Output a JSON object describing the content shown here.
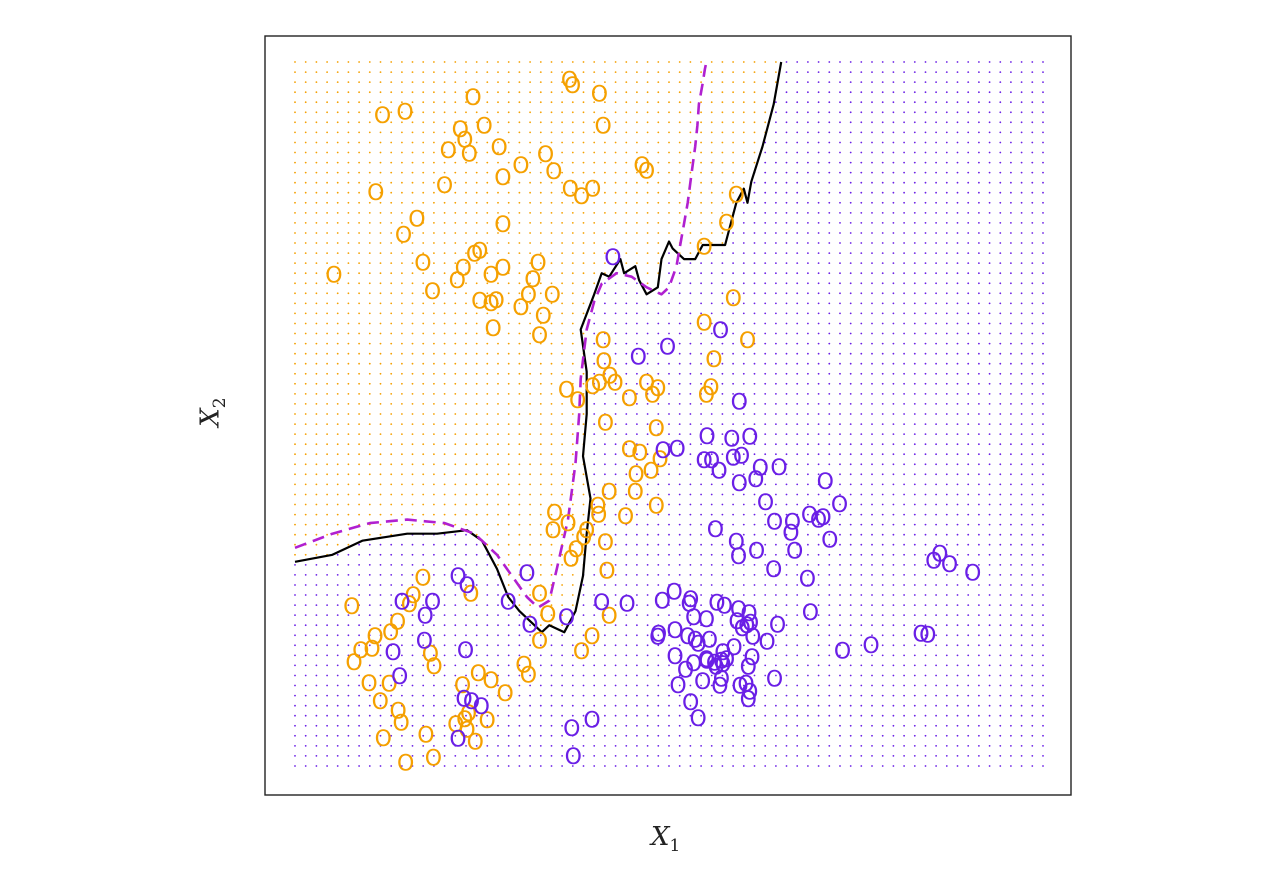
{
  "chart_data": {
    "type": "scatter",
    "title": "",
    "xlabel": "X",
    "xlabel_sub": "1",
    "ylabel": "X",
    "ylabel_sub": "2",
    "xlim": [
      0,
      1
    ],
    "ylim": [
      0,
      1
    ],
    "axes_ticks": "none",
    "grid": "background dot grid colored by predicted class",
    "marker": "O",
    "colors": {
      "orange": "#f5a000",
      "blue": "#6a1fe6",
      "bayes_boundary": "#b020d0",
      "fitted_boundary": "#000000"
    },
    "series": [
      {
        "color": "orange",
        "x": [
          0.052,
          0.273,
          0.302,
          0.398,
          0.383,
          0.278,
          0.346,
          0.335,
          0.253,
          0.238,
          0.221,
          0.227,
          0.233,
          0.205,
          0.147,
          0.117,
          0.2,
          0.163,
          0.108,
          0.145,
          0.217,
          0.262,
          0.278,
          0.278,
          0.247,
          0.24,
          0.269,
          0.262,
          0.344,
          0.332,
          0.302,
          0.327,
          0.412,
          0.413,
          0.407,
          0.363,
          0.378,
          0.398,
          0.447,
          0.478,
          0.483,
          0.488,
          0.476,
          0.461,
          0.447,
          0.415,
          0.456,
          0.483,
          0.455,
          0.442,
          0.42,
          0.406,
          0.39,
          0.365,
          0.347,
          0.376,
          0.415,
          0.417,
          0.405,
          0.386,
          0.369,
          0.327,
          0.338,
          0.42,
          0.397,
          0.383,
          0.327,
          0.312,
          0.306,
          0.281,
          0.262,
          0.245,
          0.257,
          0.241,
          0.23,
          0.227,
          0.232,
          0.181,
          0.153,
          0.137,
          0.171,
          0.158,
          0.128,
          0.107,
          0.103,
          0.079,
          0.076,
          0.088,
          0.099,
          0.114,
          0.126,
          0.138,
          0.186,
          0.224,
          0.142,
          0.118,
          0.148,
          0.215,
          0.185,
          0.175,
          0.235,
          0.345,
          0.421,
          0.428,
          0.47,
          0.485,
          0.55,
          0.556,
          0.56,
          0.605,
          0.547,
          0.586,
          0.547,
          0.577,
          0.59,
          0.47,
          0.464,
          0.412,
          0.407,
          0.371,
          0.367,
          0.368,
          0.325,
          0.312,
          0.318,
          0.265,
          0.247,
          0.225,
          0.184,
          0.171
        ],
        "y": [
          0.698,
          0.879,
          0.854,
          0.82,
          0.81,
          0.837,
          0.845,
          0.869,
          0.91,
          0.95,
          0.905,
          0.89,
          0.87,
          0.875,
          0.93,
          0.925,
          0.825,
          0.778,
          0.815,
          0.755,
          0.69,
          0.698,
          0.77,
          0.708,
          0.732,
          0.728,
          0.662,
          0.658,
          0.67,
          0.64,
          0.652,
          0.612,
          0.605,
          0.575,
          0.545,
          0.535,
          0.52,
          0.54,
          0.523,
          0.528,
          0.48,
          0.436,
          0.42,
          0.445,
          0.45,
          0.488,
          0.415,
          0.37,
          0.39,
          0.355,
          0.39,
          0.357,
          0.335,
          0.345,
          0.36,
          0.308,
          0.318,
          0.278,
          0.37,
          0.325,
          0.295,
          0.245,
          0.216,
          0.214,
          0.185,
          0.163,
          0.178,
          0.13,
          0.144,
          0.104,
          0.122,
          0.132,
          0.065,
          0.035,
          0.052,
          0.067,
          0.075,
          0.16,
          0.23,
          0.205,
          0.268,
          0.243,
          0.19,
          0.185,
          0.167,
          0.148,
          0.227,
          0.165,
          0.118,
          0.092,
          0.117,
          0.079,
          0.142,
          0.115,
          0.062,
          0.04,
          0.005,
          0.06,
          0.012,
          0.045,
          0.245,
          0.335,
          0.555,
          0.545,
          0.545,
          0.537,
          0.528,
          0.538,
          0.578,
          0.605,
          0.63,
          0.665,
          0.738,
          0.772,
          0.812,
          0.846,
          0.854,
          0.91,
          0.955,
          0.967,
          0.975,
          0.82,
          0.715,
          0.67,
          0.692,
          0.622,
          0.661,
          0.708,
          0.675,
          0.715
        ]
      },
      {
        "color": "blue",
        "x": [
          0.425,
          0.498,
          0.459,
          0.569,
          0.594,
          0.584,
          0.557,
          0.492,
          0.551,
          0.511,
          0.547,
          0.567,
          0.597,
          0.586,
          0.594,
          0.608,
          0.647,
          0.616,
          0.622,
          0.629,
          0.641,
          0.665,
          0.688,
          0.709,
          0.663,
          0.59,
          0.562,
          0.593,
          0.617,
          0.64,
          0.668,
          0.685,
          0.706,
          0.7,
          0.728,
          0.715,
          0.689,
          0.645,
          0.631,
          0.604,
          0.55,
          0.55,
          0.591,
          0.607,
          0.593,
          0.574,
          0.564,
          0.529,
          0.491,
          0.485,
          0.486,
          0.508,
          0.551,
          0.561,
          0.598,
          0.609,
          0.611,
          0.606,
          0.603,
          0.57,
          0.535,
          0.522,
          0.512,
          0.529,
          0.539,
          0.545,
          0.568,
          0.572,
          0.587,
          0.608,
          0.606,
          0.595,
          0.57,
          0.563,
          0.554,
          0.577,
          0.533,
          0.525,
          0.508,
          0.539,
          0.527,
          0.507,
          0.444,
          0.41,
          0.363,
          0.314,
          0.228,
          0.285,
          0.31,
          0.218,
          0.23,
          0.174,
          0.143,
          0.184,
          0.173,
          0.131,
          0.14,
          0.226,
          0.218,
          0.236,
          0.249,
          0.37,
          0.372,
          0.397,
          0.533,
          0.612,
          0.572,
          0.641,
          0.732,
          0.77,
          0.837,
          0.846,
          0.854,
          0.862,
          0.875,
          0.906
        ],
        "y": [
          0.723,
          0.596,
          0.582,
          0.619,
          0.518,
          0.465,
          0.435,
          0.449,
          0.469,
          0.451,
          0.435,
          0.42,
          0.441,
          0.438,
          0.402,
          0.468,
          0.425,
          0.408,
          0.424,
          0.375,
          0.347,
          0.347,
          0.357,
          0.405,
          0.332,
          0.319,
          0.337,
          0.298,
          0.306,
          0.28,
          0.306,
          0.266,
          0.354,
          0.35,
          0.372,
          0.322,
          0.219,
          0.201,
          0.177,
          0.2,
          0.209,
          0.152,
          0.206,
          0.217,
          0.223,
          0.228,
          0.232,
          0.237,
          0.235,
          0.184,
          0.188,
          0.156,
          0.15,
          0.147,
          0.196,
          0.204,
          0.155,
          0.141,
          0.117,
          0.15,
          0.18,
          0.137,
          0.115,
          0.091,
          0.068,
          0.121,
          0.114,
          0.162,
          0.169,
          0.106,
          0.095,
          0.114,
          0.124,
          0.141,
          0.18,
          0.152,
          0.212,
          0.185,
          0.193,
          0.174,
          0.231,
          0.248,
          0.231,
          0.233,
          0.212,
          0.201,
          0.165,
          0.234,
          0.274,
          0.27,
          0.257,
          0.214,
          0.234,
          0.234,
          0.178,
          0.162,
          0.128,
          0.096,
          0.039,
          0.092,
          0.085,
          0.054,
          0.014,
          0.066,
          0.146,
          0.184,
          0.145,
          0.124,
          0.164,
          0.172,
          0.188,
          0.187,
          0.292,
          0.302,
          0.287,
          0.275
        ]
      }
    ],
    "bayes_boundary": {
      "style": "dashed",
      "x": [
        0.0,
        0.05,
        0.1,
        0.15,
        0.2,
        0.24,
        0.27,
        0.29,
        0.31,
        0.325,
        0.34,
        0.35,
        0.365,
        0.375,
        0.38,
        0.382,
        0.39,
        0.4,
        0.41,
        0.43,
        0.45,
        0.47,
        0.49,
        0.5,
        0.51,
        0.515,
        0.52,
        0.525,
        0.53,
        0.535,
        0.538,
        0.54,
        0.545,
        0.548,
        0.55
      ],
      "y": [
        0.31,
        0.33,
        0.345,
        0.35,
        0.345,
        0.33,
        0.3,
        0.27,
        0.24,
        0.225,
        0.235,
        0.28,
        0.35,
        0.43,
        0.5,
        0.55,
        0.62,
        0.66,
        0.685,
        0.7,
        0.695,
        0.68,
        0.67,
        0.68,
        0.71,
        0.74,
        0.77,
        0.8,
        0.84,
        0.88,
        0.91,
        0.94,
        0.97,
        0.99,
        1.0
      ]
    },
    "fitted_boundary": {
      "style": "solid",
      "x": [
        0.0,
        0.05,
        0.09,
        0.12,
        0.15,
        0.19,
        0.23,
        0.25,
        0.27,
        0.285,
        0.3,
        0.32,
        0.33,
        0.34,
        0.36,
        0.375,
        0.385,
        0.39,
        0.395,
        0.385,
        0.39,
        0.39,
        0.382,
        0.4,
        0.41,
        0.42,
        0.435,
        0.44,
        0.455,
        0.46,
        0.47,
        0.485,
        0.49,
        0.5,
        0.505,
        0.52,
        0.535,
        0.545,
        0.575,
        0.58,
        0.59,
        0.6,
        0.605,
        0.61,
        0.625,
        0.64,
        0.65
      ],
      "y": [
        0.29,
        0.3,
        0.32,
        0.325,
        0.33,
        0.33,
        0.335,
        0.32,
        0.28,
        0.24,
        0.22,
        0.2,
        0.19,
        0.2,
        0.19,
        0.22,
        0.27,
        0.33,
        0.38,
        0.44,
        0.5,
        0.56,
        0.62,
        0.67,
        0.7,
        0.695,
        0.72,
        0.7,
        0.71,
        0.69,
        0.67,
        0.68,
        0.72,
        0.745,
        0.735,
        0.72,
        0.72,
        0.74,
        0.74,
        0.76,
        0.8,
        0.82,
        0.8,
        0.83,
        0.88,
        0.94,
        1.0
      ]
    }
  }
}
